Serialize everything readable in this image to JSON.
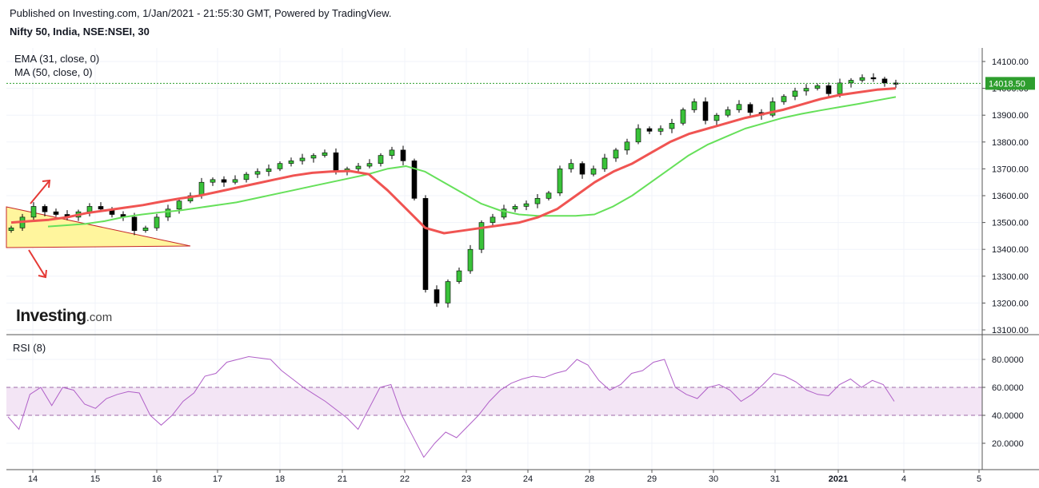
{
  "header": {
    "publish_note": "Published on Investing.com, 1/Jan/2021 - 21:55:30 GMT, Powered by TradingView.",
    "symbol": "Nifty 50, India, NSE:NSEI, 30"
  },
  "logo": {
    "brand": "Investing",
    "suffix": ".com"
  },
  "colors": {
    "ema": "#f05452",
    "ma": "#66e05a",
    "up_candle": "#3ac23a",
    "down_candle": "#000000",
    "triangle_fill": "#fff59d",
    "triangle_stroke": "#c62828",
    "arrow": "#e53935",
    "rsi_line": "#b060c8",
    "rsi_band": "#f3e5f5",
    "price_marker": "#2e9e2e"
  },
  "chart_data": [
    {
      "type": "candlestick",
      "title": "Nifty 50, India, NSE:NSEI, 30",
      "indicators": [
        "EMA (31, close, 0)",
        "MA (50, close, 0)"
      ],
      "y_ticks": [
        13100,
        13200,
        13300,
        13400,
        13500,
        13600,
        13700,
        13800,
        13900,
        14000,
        14100
      ],
      "ylim": [
        13085,
        14125
      ],
      "last_price": 14018.5,
      "last_price_label": "14018.50",
      "x_tick_labels": [
        "14",
        "15",
        "16",
        "17",
        "18",
        "21",
        "22",
        "23",
        "24",
        "28",
        "29",
        "30",
        "31",
        "2021",
        "4",
        "5"
      ],
      "close_series": [
        13480,
        13520,
        13560,
        13540,
        13530,
        13520,
        13540,
        13560,
        13550,
        13530,
        13520,
        13470,
        13480,
        13520,
        13550,
        13580,
        13600,
        13650,
        13660,
        13650,
        13660,
        13680,
        13690,
        13700,
        13720,
        13730,
        13740,
        13750,
        13760,
        13690,
        13700,
        13710,
        13720,
        13750,
        13770,
        13730,
        13590,
        13250,
        13200,
        13280,
        13320,
        13400,
        13500,
        13520,
        13550,
        13560,
        13570,
        13590,
        13610,
        13700,
        13720,
        13680,
        13700,
        13740,
        13770,
        13800,
        13850,
        13840,
        13850,
        13870,
        13920,
        13950,
        13880,
        13900,
        13920,
        13940,
        13910,
        13900,
        13950,
        13970,
        13990,
        14000,
        14010,
        13980,
        14020,
        14030,
        14040,
        14035,
        14020,
        14018.5
      ],
      "ema": [
        13500,
        13505,
        13510,
        13520,
        13535,
        13545,
        13555,
        13565,
        13578,
        13590,
        13600,
        13615,
        13630,
        13645,
        13660,
        13675,
        13685,
        13690,
        13692,
        13680,
        13620,
        13550,
        13480,
        13460,
        13470,
        13480,
        13490,
        13500,
        13520,
        13550,
        13600,
        13650,
        13690,
        13720,
        13760,
        13800,
        13830,
        13850,
        13870,
        13890,
        13905,
        13920,
        13940,
        13960,
        13975,
        13985,
        13995,
        14000
      ],
      "ma": [
        13485,
        13490,
        13495,
        13505,
        13520,
        13530,
        13538,
        13545,
        13555,
        13565,
        13575,
        13590,
        13605,
        13620,
        13635,
        13650,
        13665,
        13680,
        13700,
        13710,
        13690,
        13650,
        13610,
        13570,
        13545,
        13530,
        13525,
        13525,
        13525,
        13530,
        13560,
        13600,
        13650,
        13700,
        13750,
        13790,
        13820,
        13850,
        13870,
        13890,
        13905,
        13918,
        13930,
        13942,
        13955,
        13968
      ]
    },
    {
      "type": "line",
      "title": "RSI (8)",
      "y_ticks": [
        20,
        40,
        60,
        80
      ],
      "y_tick_labels": [
        "20.0000",
        "40.0000",
        "60.0000",
        "80.0000"
      ],
      "band": [
        40,
        60
      ],
      "ylim": [
        5,
        95
      ],
      "values": [
        39,
        30,
        55,
        60,
        47,
        60,
        58,
        48,
        45,
        52,
        55,
        57,
        56,
        40,
        33,
        40,
        50,
        56,
        68,
        70,
        78,
        80,
        82,
        81,
        80,
        72,
        66,
        60,
        55,
        50,
        44,
        38,
        30,
        45,
        60,
        62,
        40,
        25,
        10,
        20,
        28,
        24,
        32,
        40,
        50,
        58,
        63,
        66,
        68,
        67,
        70,
        72,
        80,
        76,
        65,
        58,
        62,
        70,
        72,
        78,
        80,
        60,
        55,
        52,
        60,
        62,
        58,
        50,
        55,
        62,
        70,
        68,
        64,
        58,
        55,
        54,
        62,
        66,
        60,
        65,
        62,
        50
      ]
    }
  ]
}
